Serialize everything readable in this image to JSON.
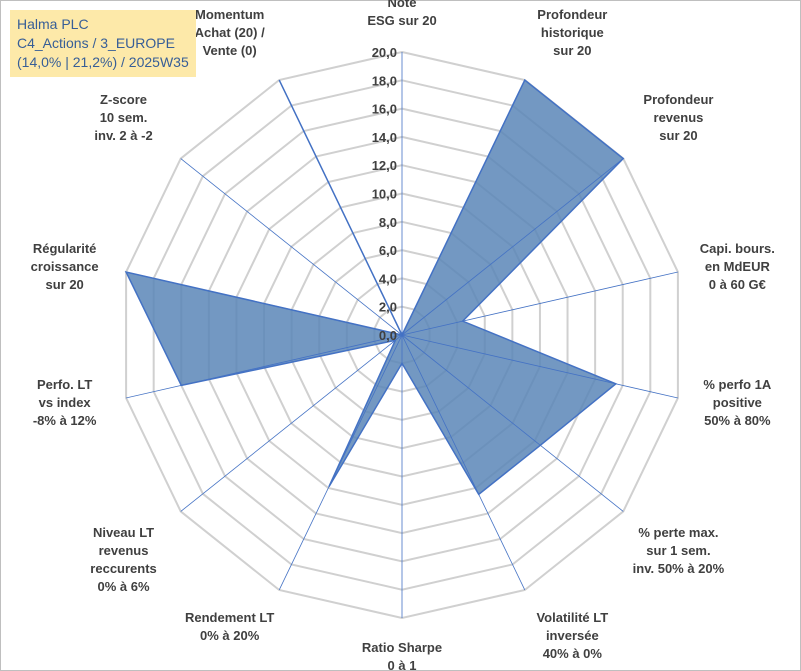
{
  "header": {
    "line1": "Halma PLC",
    "line2": "C4_Actions / 3_EUROPE",
    "line3": "(14,0% | 21,2%) / 2025W35"
  },
  "chart_data": {
    "type": "radar",
    "ylim": [
      0,
      20
    ],
    "ticks": [
      "0,0",
      "2,0",
      "4,0",
      "6,0",
      "8,0",
      "10,0",
      "12,0",
      "14,0",
      "16,0",
      "18,0",
      "20,0"
    ],
    "grid": true,
    "categories": [
      [
        "Note",
        "ESG sur 20"
      ],
      [
        "Profondeur",
        "historique",
        "sur 20"
      ],
      [
        "Profondeur",
        "revenus",
        "sur 20"
      ],
      [
        "Capi. bours.",
        "en MdEUR",
        "0 à 60 G€"
      ],
      [
        "% perfo 1A",
        "positive",
        "50% à 80%"
      ],
      [
        "% perte max.",
        "sur 1 sem.",
        "inv. 50% à 20%"
      ],
      [
        "Volatilité LT",
        "inversée",
        "40% à 0%"
      ],
      [
        "Ratio Sharpe",
        "0 à 1"
      ],
      [
        "Rendement LT",
        "0% à 20%"
      ],
      [
        "Niveau LT",
        "revenus",
        "reccurents",
        "0% à 6%"
      ],
      [
        "Perfo. LT",
        "vs index",
        "-8% à 12%"
      ],
      [
        "Régularité",
        "croissance",
        "sur 20"
      ],
      [
        "Z-score",
        "10 sem.",
        "inv. 2 à -2"
      ],
      [
        "Momentum",
        "Achat (20) /",
        "Vente (0)"
      ]
    ],
    "series": [
      {
        "values": [
          0,
          20,
          20,
          4.4,
          15.5,
          12.5,
          12.5,
          2.0,
          11.9,
          0.6,
          16.0,
          20,
          0,
          20
        ]
      }
    ],
    "colors": {
      "fill": "#5b86b7",
      "stroke": "#4472c4",
      "grid": "#d0d0d0",
      "axis": "#4472c4"
    }
  }
}
